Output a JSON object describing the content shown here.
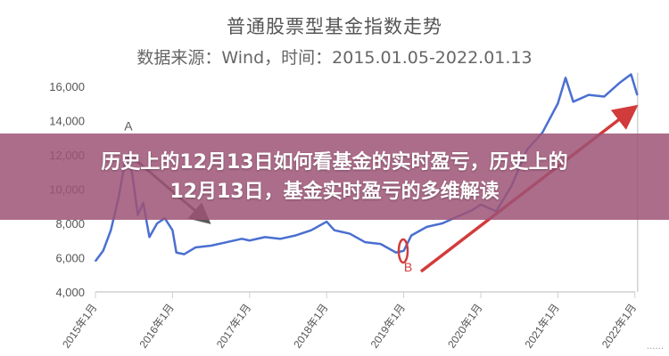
{
  "chart_data": {
    "type": "line",
    "title": "普通股票型基金指数走势",
    "subtitle": "数据来源：Wind，时间：2015.01.05-2022.01.13",
    "xlabel": "",
    "ylabel": "",
    "x_ticks": [
      "2015年1月",
      "2016年1月",
      "2017年1月",
      "2018年1月",
      "2019年1月",
      "2020年1月",
      "2021年1月",
      "2022年1月"
    ],
    "y_ticks": [
      "4,000",
      "6,000",
      "8,000",
      "10,000",
      "12,000",
      "14,000",
      "16,000"
    ],
    "ylim": [
      4000,
      16000
    ],
    "xlim": [
      2015.0,
      2022.05
    ],
    "grid": false,
    "series": [
      {
        "color": "#4a6fd1",
        "x": [
          2015.0,
          2015.1,
          2015.2,
          2015.3,
          2015.38,
          2015.42,
          2015.48,
          2015.55,
          2015.62,
          2015.7,
          2015.8,
          2015.9,
          2016.0,
          2016.05,
          2016.15,
          2016.3,
          2016.5,
          2016.7,
          2016.9,
          2017.0,
          2017.2,
          2017.4,
          2017.6,
          2017.8,
          2018.0,
          2018.1,
          2018.3,
          2018.5,
          2018.7,
          2018.9,
          2019.0,
          2019.1,
          2019.3,
          2019.5,
          2019.7,
          2019.9,
          2020.0,
          2020.2,
          2020.4,
          2020.6,
          2020.8,
          2021.0,
          2021.1,
          2021.2,
          2021.4,
          2021.6,
          2021.8,
          2021.95,
          2022.03
        ],
        "y": [
          5800,
          6400,
          7600,
          9500,
          11500,
          12000,
          10800,
          8500,
          9200,
          7200,
          8000,
          8300,
          7600,
          6300,
          6200,
          6600,
          6700,
          6900,
          7100,
          7000,
          7200,
          7100,
          7300,
          7600,
          8100,
          7600,
          7400,
          6900,
          6800,
          6300,
          6400,
          7300,
          7800,
          8000,
          8400,
          8800,
          9100,
          8700,
          10200,
          12300,
          13300,
          15000,
          16500,
          15100,
          15500,
          15400,
          16200,
          16700,
          15500
        ]
      }
    ],
    "annotations": [
      {
        "label": "A",
        "x": 2015.42,
        "y": 12700
      },
      {
        "label": "B",
        "x": 2019.05,
        "y": 5200
      }
    ],
    "arrow_colors": {
      "A": "#5a5a5a",
      "B": "#d23b3b"
    }
  },
  "headline": "历史上的12月13日如何看基金的实时盈亏，历史上的12月13日，基金实时盈亏的多维解读",
  "watermark": "······"
}
